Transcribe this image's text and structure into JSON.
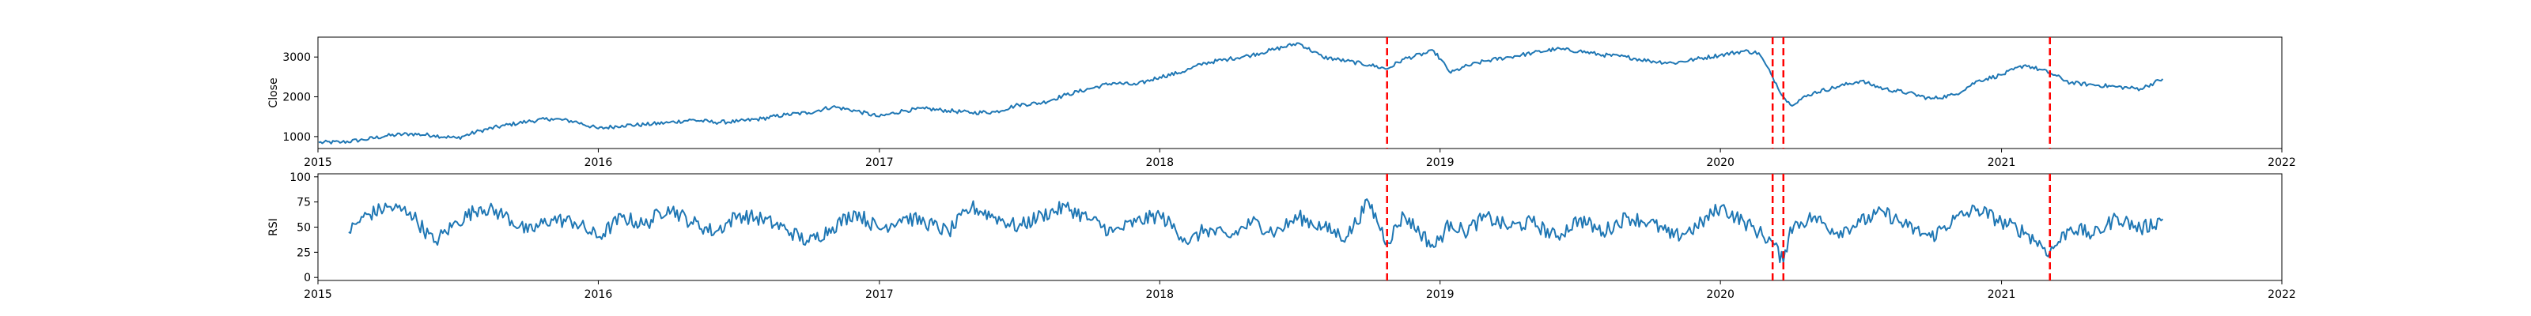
{
  "chart_data": [
    {
      "type": "line",
      "title": "",
      "xlabel": "",
      "ylabel": "Close",
      "xlim": [
        "2015-01-01",
        "2022-01-01"
      ],
      "ylim": [
        700,
        3500
      ],
      "x_ticks": [
        "2015",
        "2016",
        "2017",
        "2018",
        "2019",
        "2020",
        "2021",
        "2022"
      ],
      "y_ticks": [
        1000,
        2000,
        3000
      ],
      "line_color": "#1f77b4",
      "marker_color": "#ff0000",
      "marker_lines": [
        "2018-10-24",
        "2020-03-09",
        "2020-03-23",
        "2021-03-05"
      ],
      "series": [
        {
          "x": [
            "2015-01-02",
            "2015-02-01",
            "2015-03-01",
            "2015-04-01",
            "2015-05-01",
            "2015-06-01",
            "2015-07-01",
            "2015-08-01",
            "2015-09-01",
            "2015-10-01",
            "2015-11-01",
            "2015-12-01",
            "2016-01-01",
            "2016-02-01",
            "2016-03-01",
            "2016-04-01",
            "2016-05-01",
            "2016-06-01",
            "2016-07-01",
            "2016-08-01",
            "2016-09-01",
            "2016-10-01",
            "2016-11-01",
            "2016-12-01",
            "2017-01-01",
            "2017-02-01",
            "2017-03-01",
            "2017-04-01",
            "2017-05-01",
            "2017-06-01",
            "2017-07-01",
            "2017-08-01",
            "2017-09-01",
            "2017-10-01",
            "2017-11-01",
            "2017-12-01",
            "2018-01-01",
            "2018-01-26",
            "2018-02-09",
            "2018-03-01",
            "2018-04-01",
            "2018-05-01",
            "2018-06-01",
            "2018-07-01",
            "2018-08-01",
            "2018-09-01",
            "2018-10-01",
            "2018-10-24",
            "2018-11-15",
            "2018-12-24",
            "2019-01-15",
            "2019-02-01",
            "2019-03-01",
            "2019-04-01",
            "2019-05-01",
            "2019-06-01",
            "2019-07-01",
            "2019-08-01",
            "2019-09-01",
            "2019-10-01",
            "2019-11-01",
            "2019-12-01",
            "2020-01-01",
            "2020-02-01",
            "2020-02-20",
            "2020-03-09",
            "2020-03-23",
            "2020-04-01",
            "2020-05-01",
            "2020-06-01",
            "2020-07-01",
            "2020-08-01",
            "2020-09-01",
            "2020-10-01",
            "2020-11-01",
            "2020-12-01",
            "2021-01-01",
            "2021-02-01",
            "2021-03-05",
            "2021-04-01",
            "2021-05-01",
            "2021-06-01",
            "2021-07-01",
            "2021-07-30"
          ],
          "values": [
            850,
            860,
            920,
            1020,
            1070,
            1030,
            960,
            1150,
            1280,
            1380,
            1450,
            1380,
            1200,
            1280,
            1300,
            1350,
            1420,
            1360,
            1380,
            1450,
            1550,
            1600,
            1750,
            1650,
            1500,
            1650,
            1700,
            1650,
            1600,
            1620,
            1800,
            1850,
            2050,
            2200,
            2350,
            2300,
            2500,
            2600,
            2700,
            2850,
            2950,
            3050,
            3200,
            3350,
            3000,
            2900,
            2800,
            2700,
            2950,
            3150,
            2600,
            2750,
            2900,
            3000,
            3100,
            3200,
            3150,
            3050,
            3000,
            2900,
            2850,
            2950,
            3050,
            3150,
            3100,
            2500,
            2000,
            1800,
            2100,
            2250,
            2400,
            2200,
            2100,
            1950,
            2050,
            2400,
            2550,
            2800,
            2600,
            2350,
            2300,
            2250,
            2200,
            2450
          ]
        }
      ]
    },
    {
      "type": "line",
      "title": "",
      "xlabel": "",
      "ylabel": "RSI",
      "xlim": [
        "2015-01-01",
        "2022-01-01"
      ],
      "ylim": [
        -3,
        103
      ],
      "x_ticks": [
        "2015",
        "2016",
        "2017",
        "2018",
        "2019",
        "2020",
        "2021",
        "2022"
      ],
      "y_ticks": [
        0,
        25,
        50,
        75,
        100
      ],
      "line_color": "#1f77b4",
      "marker_color": "#ff0000",
      "marker_lines": [
        "2018-10-24",
        "2020-03-09",
        "2020-03-23",
        "2021-03-05"
      ],
      "series": [
        {
          "x": [
            "2015-02-10",
            "2015-03-01",
            "2015-04-01",
            "2015-05-01",
            "2015-06-01",
            "2015-07-01",
            "2015-08-01",
            "2015-09-01",
            "2015-10-01",
            "2015-11-01",
            "2015-12-01",
            "2016-01-01",
            "2016-02-01",
            "2016-03-01",
            "2016-04-01",
            "2016-05-01",
            "2016-06-01",
            "2016-07-01",
            "2016-08-01",
            "2016-09-01",
            "2016-10-01",
            "2016-11-01",
            "2016-12-01",
            "2017-01-01",
            "2017-02-01",
            "2017-03-01",
            "2017-04-01",
            "2017-05-01",
            "2017-06-01",
            "2017-07-01",
            "2017-08-01",
            "2017-09-01",
            "2017-10-01",
            "2017-11-01",
            "2017-12-01",
            "2018-01-01",
            "2018-02-09",
            "2018-03-01",
            "2018-04-01",
            "2018-05-01",
            "2018-06-01",
            "2018-07-01",
            "2018-08-01",
            "2018-09-01",
            "2018-09-30",
            "2018-10-24",
            "2018-11-15",
            "2018-12-24",
            "2019-01-15",
            "2019-02-01",
            "2019-03-01",
            "2019-04-01",
            "2019-05-01",
            "2019-06-01",
            "2019-07-01",
            "2019-08-01",
            "2019-09-01",
            "2019-10-01",
            "2019-11-01",
            "2019-12-01",
            "2020-01-01",
            "2020-02-01",
            "2020-02-20",
            "2020-03-09",
            "2020-03-23",
            "2020-04-01",
            "2020-05-01",
            "2020-06-01",
            "2020-07-01",
            "2020-08-01",
            "2020-09-01",
            "2020-10-01",
            "2020-11-01",
            "2020-12-01",
            "2021-01-01",
            "2021-02-01",
            "2021-03-05",
            "2021-04-01",
            "2021-05-01",
            "2021-06-01",
            "2021-07-01",
            "2021-07-30"
          ],
          "values": [
            45,
            60,
            70,
            65,
            35,
            55,
            70,
            62,
            45,
            58,
            55,
            40,
            60,
            52,
            70,
            55,
            45,
            62,
            58,
            48,
            35,
            50,
            65,
            48,
            60,
            55,
            45,
            70,
            60,
            50,
            62,
            70,
            58,
            45,
            55,
            62,
            35,
            48,
            40,
            55,
            45,
            60,
            50,
            40,
            75,
            35,
            62,
            30,
            55,
            45,
            60,
            50,
            55,
            40,
            58,
            45,
            60,
            55,
            40,
            50,
            70,
            55,
            45,
            35,
            15,
            50,
            60,
            45,
            55,
            65,
            50,
            40,
            58,
            68,
            55,
            45,
            25,
            50,
            42,
            60,
            48,
            58
          ]
        }
      ]
    }
  ]
}
